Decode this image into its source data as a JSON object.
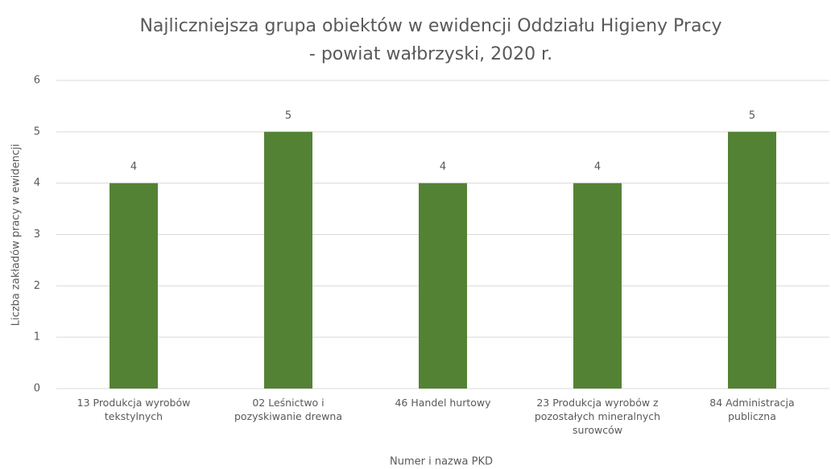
{
  "chart_data": {
    "type": "bar",
    "title": [
      "Najliczniejsza grupa obiektów w ewidencji Oddziału Higieny Pracy",
      "- powiat wałbrzyski, 2020 r."
    ],
    "x_label": "Numer i nazwa PKD",
    "y_label": "Liczba zakładów pracy w ewidencji",
    "categories": [
      "13 Produkcja wyrobów tekstylnych",
      "02 Leśnictwo i pozyskiwanie drewna",
      "46 Handel hurtowy",
      "23 Produkcja wyrobów z pozostałych mineralnych surowców",
      "84 Administracja publiczna"
    ],
    "values": [
      4,
      5,
      4,
      4,
      5
    ],
    "color": "#548235",
    "ylim": [
      0,
      6
    ],
    "yticks": [
      0,
      1,
      2,
      3,
      4,
      5,
      6
    ],
    "grid": true
  }
}
